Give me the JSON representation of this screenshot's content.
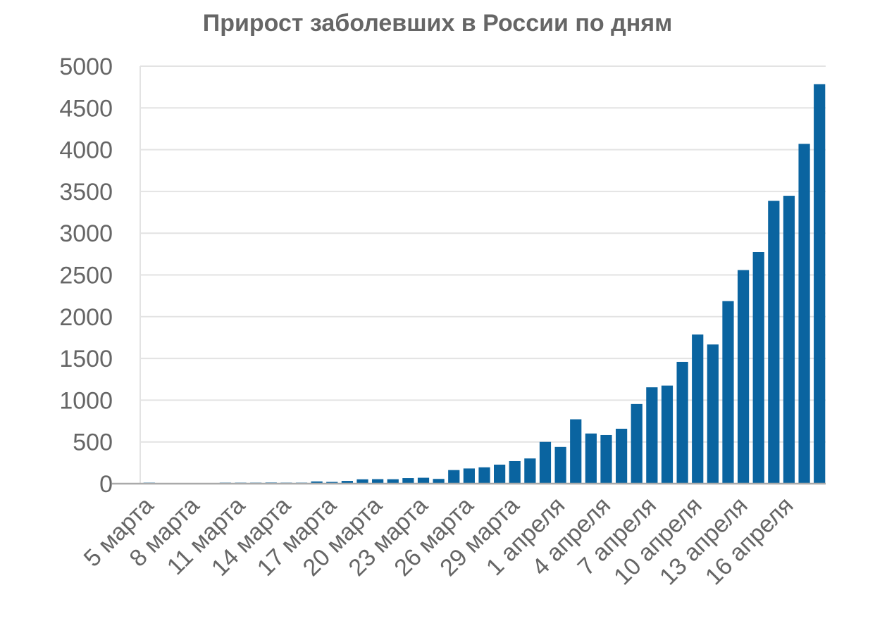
{
  "chart_data": {
    "type": "bar",
    "title": "Прирост заболевших в России по дням",
    "xlabel": "",
    "ylabel": "",
    "ylim": [
      0,
      5000
    ],
    "yticks": [
      0,
      500,
      1000,
      1500,
      2000,
      2500,
      3000,
      3500,
      4000,
      4500,
      5000
    ],
    "grid": true,
    "bar_color": "#0a64a0",
    "axis_color": "#aaaaaa",
    "grid_color": "#e3e3e3",
    "categories": [
      "5 марта",
      "6 марта",
      "7 марта",
      "8 марта",
      "9 марта",
      "10 марта",
      "11 марта",
      "12 марта",
      "13 марта",
      "14 марта",
      "15 марта",
      "16 марта",
      "17 марта",
      "18 марта",
      "19 марта",
      "20 марта",
      "21 марта",
      "22 марта",
      "23 марта",
      "24 марта",
      "25 марта",
      "26 марта",
      "27 марта",
      "28 марта",
      "29 марта",
      "30 марта",
      "31 марта",
      "1 апреля",
      "2 апреля",
      "3 апреля",
      "4 апреля",
      "5 апреля",
      "6 апреля",
      "7 апреля",
      "8 апреля",
      "9 апреля",
      "10 апреля",
      "11 апреля",
      "12 апреля",
      "13 апреля",
      "14 апреля",
      "15 апреля",
      "16 апреля",
      "17 апреля",
      "18 апреля"
    ],
    "tick_labels": [
      "5 марта",
      "8 марта",
      "11 марта",
      "14 марта",
      "17 марта",
      "20 марта",
      "23 марта",
      "26 марта",
      "29 марта",
      "1 апреля",
      "4 апреля",
      "7 апреля",
      "10 апреля",
      "13 апреля",
      "16 апреля"
    ],
    "values": [
      1,
      0,
      0,
      0,
      0,
      3,
      8,
      6,
      14,
      11,
      4,
      27,
      21,
      33,
      52,
      54,
      53,
      67,
      71,
      57,
      163,
      182,
      196,
      228,
      270,
      302,
      500,
      440,
      771,
      601,
      582,
      658,
      954,
      1154,
      1175,
      1459,
      1786,
      1667,
      2186,
      2558,
      2774,
      3388,
      3448,
      4070,
      4785
    ]
  }
}
